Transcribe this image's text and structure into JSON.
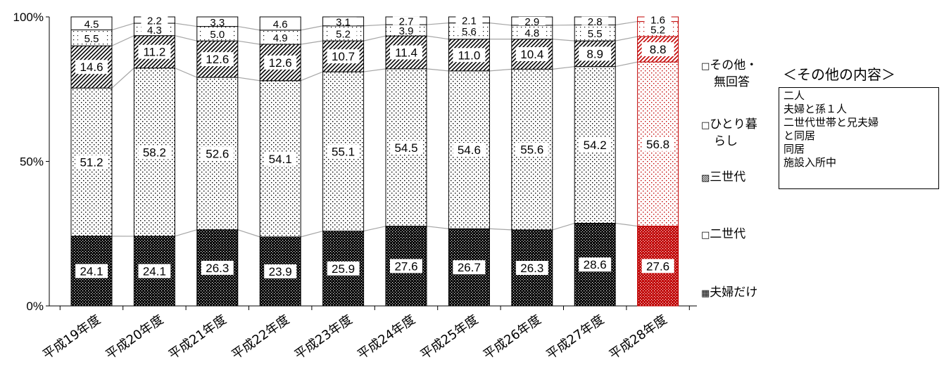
{
  "chart_data": {
    "type": "bar",
    "stacked": true,
    "normalized": true,
    "categories": [
      "平成19年度",
      "平成20年度",
      "平成21年度",
      "平成22年度",
      "平成23年度",
      "平成24年度",
      "平成25年度",
      "平成26年度",
      "平成27年度",
      "平成28年度"
    ],
    "series": [
      {
        "name": "夫婦だけ",
        "values": [
          24.1,
          24.1,
          26.3,
          23.9,
          25.9,
          27.6,
          26.7,
          26.3,
          28.6,
          27.6
        ]
      },
      {
        "name": "二世代",
        "values": [
          51.2,
          58.2,
          52.6,
          54.1,
          55.1,
          54.5,
          54.6,
          55.6,
          54.2,
          56.8
        ]
      },
      {
        "name": "三世代",
        "values": [
          14.6,
          11.2,
          12.6,
          12.6,
          10.7,
          11.4,
          11.0,
          10.4,
          8.9,
          8.8
        ]
      },
      {
        "name": "ひとり暮らし",
        "values": [
          5.5,
          4.3,
          5.0,
          4.9,
          5.2,
          3.9,
          5.6,
          4.8,
          5.5,
          5.2
        ]
      },
      {
        "name": "その他・無回答",
        "values": [
          4.5,
          2.2,
          3.3,
          4.6,
          3.1,
          2.7,
          2.1,
          2.9,
          2.8,
          1.6
        ]
      }
    ],
    "yticks": [
      "0%",
      "50%",
      "100%"
    ],
    "ylim": [
      0,
      100
    ],
    "highlight_category": "平成28年度",
    "highlight_color": "#c00000",
    "legend_position": "right"
  },
  "legend": {
    "items": [
      {
        "symbol": "□",
        "label_lines": [
          "その他・",
          "無回答"
        ]
      },
      {
        "symbol": "□",
        "label_lines": [
          "ひとり暮",
          "らし"
        ]
      },
      {
        "symbol": "▨",
        "label_lines": [
          "三世代"
        ]
      },
      {
        "symbol": "□",
        "label_lines": [
          "二世代"
        ]
      },
      {
        "symbol": "▦",
        "label_lines": [
          "夫婦だけ"
        ]
      }
    ]
  },
  "other_contents": {
    "title": "＜その他の内容＞",
    "lines": [
      "二人",
      "夫婦と孫１人",
      "二世代世帯と兄夫婦",
      "と同居",
      "同居",
      "施設入所中"
    ]
  }
}
